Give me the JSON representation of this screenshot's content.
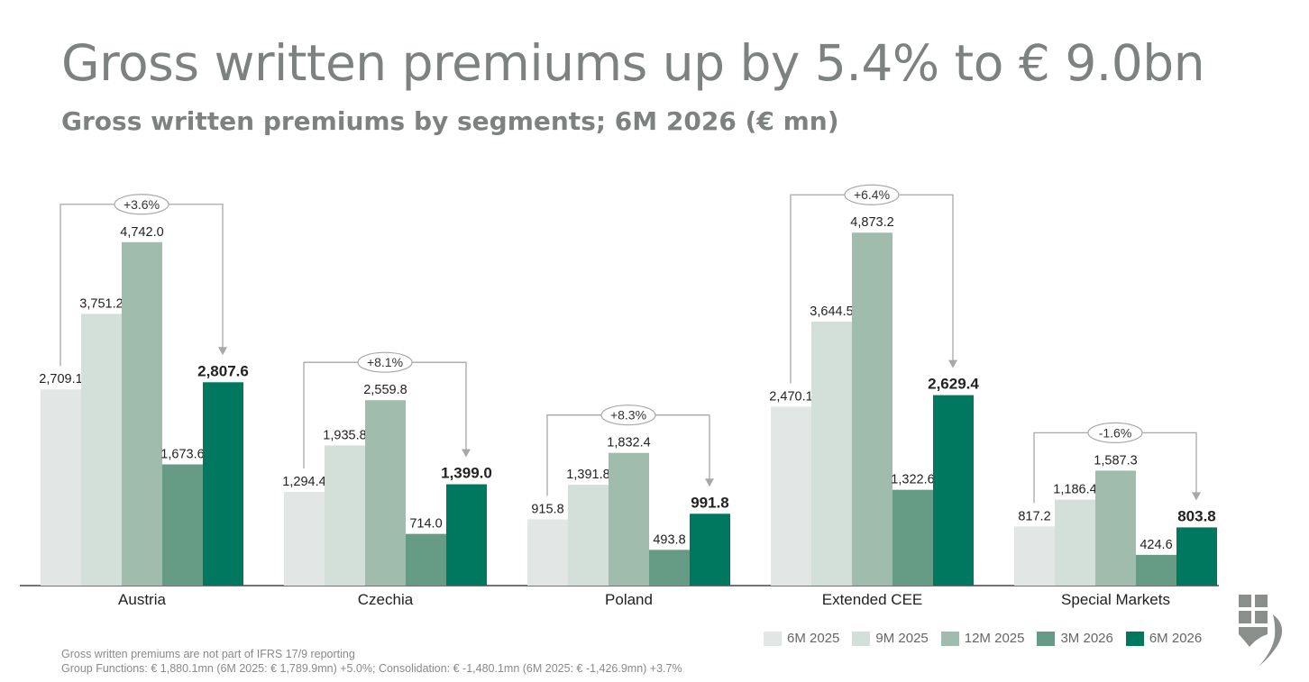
{
  "header": {
    "title": "Gross written premiums up by 5.4% to € 9.0bn",
    "subtitle": "Gross written premiums by segments; 6M 2026 (€ mn)"
  },
  "footnotes": {
    "line1": "Gross written premiums are not part of IFRS 17/9 reporting",
    "line2": "Group Functions: € 1,880.1mn (6M 2025: € 1,789.9mn) +5.0%; Consolidation: € -1,480.1mn (6M 2025: € -1,426.9mn) +3.7%"
  },
  "chart_data": {
    "type": "bar",
    "categories": [
      "Austria",
      "Czechia",
      "Poland",
      "Extended CEE",
      "Special Markets"
    ],
    "series": [
      {
        "name": "6M 2025",
        "color": "#e2e6e5",
        "values": [
          2709.1,
          1294.4,
          915.8,
          2470.1,
          817.2
        ],
        "labels": [
          "2,709.1",
          "1,294.4",
          "915.8",
          "2,470.1",
          "817.2"
        ]
      },
      {
        "name": "9M 2025",
        "color": "#d3dfd9",
        "values": [
          3751.2,
          1935.8,
          1391.8,
          3644.5,
          1186.4
        ],
        "labels": [
          "3,751.2",
          "1,935.8",
          "1,391.8",
          "3,644.5",
          "1,186.4"
        ]
      },
      {
        "name": "12M 2025",
        "color": "#a0bcad",
        "values": [
          4742.0,
          2559.8,
          1832.4,
          4873.2,
          1587.3
        ],
        "labels": [
          "4,742.0",
          "2,559.8",
          "1,832.4",
          "4,873.2",
          "1,587.3"
        ]
      },
      {
        "name": "3M 2026",
        "color": "#669c86",
        "values": [
          1673.6,
          714.0,
          493.8,
          1322.6,
          424.6
        ],
        "labels": [
          "1,673.6",
          "714.0",
          "493.8",
          "1,322.6",
          "424.6"
        ]
      },
      {
        "name": "6M 2026",
        "color": "#00785f",
        "values": [
          2807.6,
          1399.0,
          991.8,
          2629.4,
          803.8
        ],
        "labels": [
          "2,807.6",
          "1,399.0",
          "991.8",
          "2,629.4",
          "803.8"
        ]
      }
    ],
    "changes": [
      "+3.6%",
      "+8.1%",
      "+8.3%",
      "+6.4%",
      "-1.6%"
    ],
    "ylim": [
      0,
      5100
    ],
    "grid": false,
    "legend": "bottom-right"
  }
}
